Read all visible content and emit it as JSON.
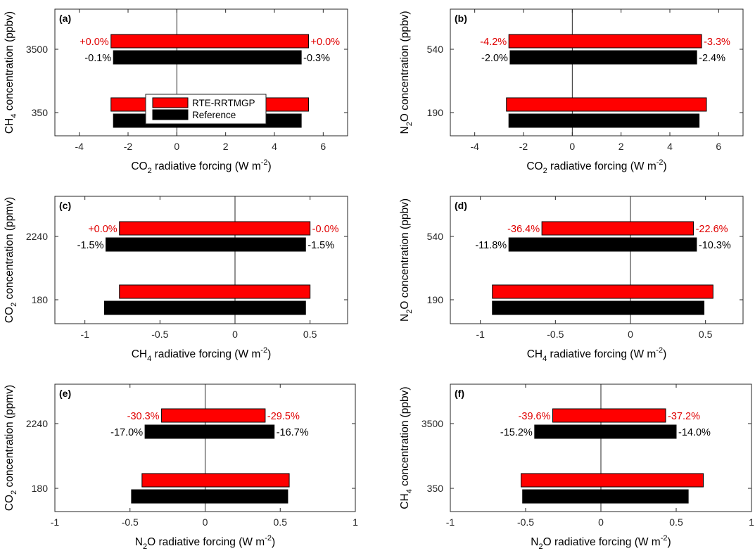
{
  "colors": {
    "rte": "#ff0000",
    "reference": "#000000",
    "rte_text": "#e00000",
    "reference_text": "#000000"
  },
  "legend": {
    "entries": [
      "RTE-RRTMGP",
      "Reference"
    ],
    "panel": 0,
    "placement": "inside-bottom-center"
  },
  "chart_data": [
    {
      "type": "bar",
      "orientation": "horizontal",
      "panel": "(a)",
      "xlabel": {
        "prefix": "CO",
        "sub": "2",
        "main": " radiative forcing (W m",
        "sup": "-2",
        "suffix": ")"
      },
      "ylabel": {
        "prefix": "CH",
        "sub": "4",
        "main": " concentration (ppbv)"
      },
      "xlim": [
        -5,
        7
      ],
      "xticks": [
        -4,
        -2,
        0,
        2,
        4,
        6
      ],
      "xtick_labels": [
        "-4",
        "-2",
        "0",
        "2",
        "4",
        "6"
      ],
      "categories": [
        "3500",
        "350"
      ],
      "series": [
        {
          "name": "RTE-RRTMGP",
          "low": [
            -2.7,
            -2.7
          ],
          "high": [
            5.4,
            5.4
          ]
        },
        {
          "name": "Reference",
          "low": [
            -2.6,
            -2.6
          ],
          "high": [
            5.1,
            5.1
          ]
        }
      ],
      "annotations": {
        "rte_left": "+0.0%",
        "rte_right": "+0.0%",
        "ref_left": "-0.1%",
        "ref_right": "-0.3%"
      }
    },
    {
      "type": "bar",
      "orientation": "horizontal",
      "panel": "(b)",
      "xlabel": {
        "prefix": "CO",
        "sub": "2",
        "main": " radiative forcing (W m",
        "sup": "-2",
        "suffix": ")"
      },
      "ylabel": {
        "prefix": "N",
        "sub": "2",
        "main": "O concentration (ppbv)"
      },
      "xlim": [
        -5,
        7
      ],
      "xticks": [
        -4,
        -2,
        0,
        2,
        4,
        6
      ],
      "xtick_labels": [
        "-4",
        "-2",
        "0",
        "2",
        "4",
        "6"
      ],
      "categories": [
        "540",
        "190"
      ],
      "series": [
        {
          "name": "RTE-RRTMGP",
          "low": [
            -2.6,
            -2.7
          ],
          "high": [
            5.3,
            5.5
          ]
        },
        {
          "name": "Reference",
          "low": [
            -2.55,
            -2.6
          ],
          "high": [
            5.1,
            5.2
          ]
        }
      ],
      "annotations": {
        "rte_left": "-4.2%",
        "rte_right": "-3.3%",
        "ref_left": "-2.0%",
        "ref_right": "-2.4%"
      }
    },
    {
      "type": "bar",
      "orientation": "horizontal",
      "panel": "(c)",
      "xlabel": {
        "prefix": "CH",
        "sub": "4",
        "main": " radiative forcing (W m",
        "sup": "-2",
        "suffix": ")"
      },
      "ylabel": {
        "prefix": "CO",
        "sub": "2",
        "main": " concentration (ppmv)"
      },
      "xlim": [
        -1.2,
        0.75
      ],
      "xticks": [
        -1,
        -0.5,
        0,
        0.5
      ],
      "xtick_labels": [
        "-1",
        "-0.5",
        "0",
        "0.5"
      ],
      "categories": [
        "2240",
        "180"
      ],
      "series": [
        {
          "name": "RTE-RRTMGP",
          "low": [
            -0.77,
            -0.77
          ],
          "high": [
            0.5,
            0.5
          ]
        },
        {
          "name": "Reference",
          "low": [
            -0.86,
            -0.87
          ],
          "high": [
            0.47,
            0.47
          ]
        }
      ],
      "annotations": {
        "rte_left": "+0.0%",
        "rte_right": "-0.0%",
        "ref_left": "-1.5%",
        "ref_right": "-1.5%"
      }
    },
    {
      "type": "bar",
      "orientation": "horizontal",
      "panel": "(d)",
      "xlabel": {
        "prefix": "CH",
        "sub": "4",
        "main": " radiative forcing (W m",
        "sup": "-2",
        "suffix": ")"
      },
      "ylabel": {
        "prefix": "N",
        "sub": "2",
        "main": "O concentration (ppbv)"
      },
      "xlim": [
        -1.2,
        0.75
      ],
      "xticks": [
        -1,
        -0.5,
        0,
        0.5
      ],
      "xtick_labels": [
        "-1",
        "-0.5",
        "0",
        "0.5"
      ],
      "categories": [
        "540",
        "190"
      ],
      "series": [
        {
          "name": "RTE-RRTMGP",
          "low": [
            -0.59,
            -0.92
          ],
          "high": [
            0.42,
            0.55
          ]
        },
        {
          "name": "Reference",
          "low": [
            -0.81,
            -0.92
          ],
          "high": [
            0.44,
            0.49
          ]
        }
      ],
      "annotations": {
        "rte_left": "-36.4%",
        "rte_right": "-22.6%",
        "ref_left": "-11.8%",
        "ref_right": "-10.3%"
      }
    },
    {
      "type": "bar",
      "orientation": "horizontal",
      "panel": "(e)",
      "xlabel": {
        "prefix": "N",
        "sub": "2",
        "main": "O radiative forcing (W m",
        "sup": "-2",
        "suffix": ")"
      },
      "ylabel": {
        "prefix": "CO",
        "sub": "2",
        "main": " concentration (ppmv)"
      },
      "xlim": [
        -1,
        1
      ],
      "xticks": [
        -1,
        -0.5,
        0,
        0.5,
        1
      ],
      "xtick_labels": [
        "-1",
        "-0.5",
        "0",
        "0.5",
        "1"
      ],
      "categories": [
        "2240",
        "180"
      ],
      "series": [
        {
          "name": "RTE-RRTMGP",
          "low": [
            -0.29,
            -0.42
          ],
          "high": [
            0.4,
            0.56
          ]
        },
        {
          "name": "Reference",
          "low": [
            -0.4,
            -0.49
          ],
          "high": [
            0.46,
            0.55
          ]
        }
      ],
      "annotations": {
        "rte_left": "-30.3%",
        "rte_right": "-29.5%",
        "ref_left": "-17.0%",
        "ref_right": "-16.7%"
      }
    },
    {
      "type": "bar",
      "orientation": "horizontal",
      "panel": "(f)",
      "xlabel": {
        "prefix": "N",
        "sub": "2",
        "main": "O radiative forcing (W m",
        "sup": "-2",
        "suffix": ")"
      },
      "ylabel": {
        "prefix": "CH",
        "sub": "4",
        "main": " concentration (ppbv)"
      },
      "xlim": [
        -1,
        1
      ],
      "xticks": [
        -1,
        -0.5,
        0,
        0.5,
        1
      ],
      "xtick_labels": [
        "-1",
        "-0.5",
        "0",
        "0.5",
        "1"
      ],
      "categories": [
        "3500",
        "350"
      ],
      "series": [
        {
          "name": "RTE-RRTMGP",
          "low": [
            -0.32,
            -0.53
          ],
          "high": [
            0.43,
            0.68
          ]
        },
        {
          "name": "Reference",
          "low": [
            -0.44,
            -0.52
          ],
          "high": [
            0.5,
            0.58
          ]
        }
      ],
      "annotations": {
        "rte_left": "-39.6%",
        "rte_right": "-37.2%",
        "ref_left": "-15.2%",
        "ref_right": "-14.0%"
      }
    }
  ]
}
